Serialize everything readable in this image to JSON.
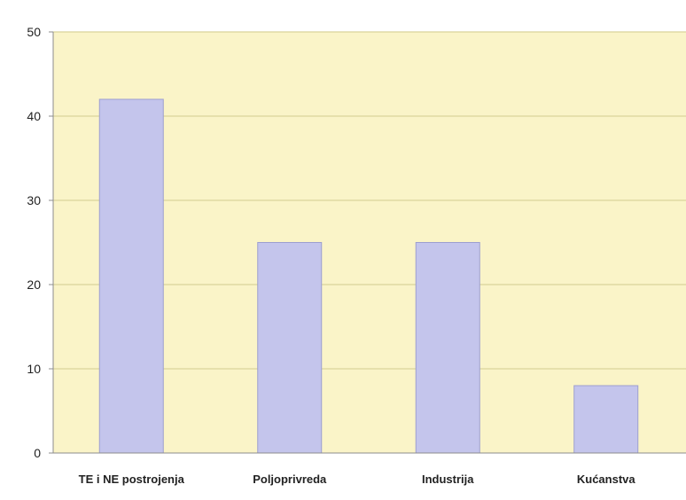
{
  "chart_data": {
    "type": "bar",
    "title": "",
    "xlabel": "",
    "ylabel": "",
    "categories": [
      "TE i NE postrojenja",
      "Poljoprivreda",
      "Industrija",
      "Kućanstva"
    ],
    "values": [
      42,
      25,
      25,
      8
    ],
    "ylim": [
      0,
      50
    ],
    "yticks": [
      "0",
      "10",
      "20",
      "30",
      "40",
      "50"
    ],
    "grid": true,
    "legend": "none",
    "colors": {
      "plot_background": "#faf4c8",
      "bar_fill": "#c4c5ec",
      "bar_stroke": "#9d9fcf",
      "grid_line": "#d9d39a",
      "axis_line": "#8c8c8c"
    }
  }
}
